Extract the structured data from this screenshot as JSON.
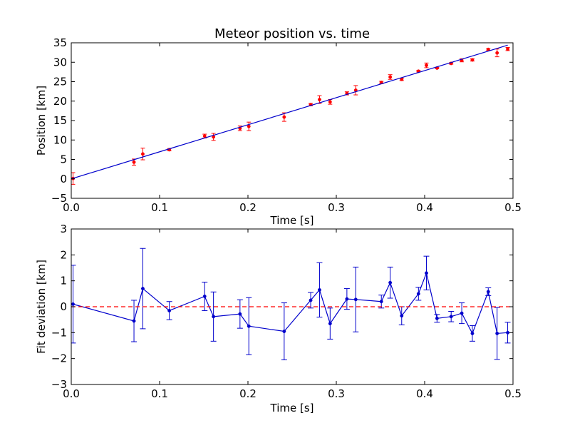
{
  "chart_data": [
    {
      "type": "scatter",
      "title": "Meteor position vs. time",
      "xlabel": "Time [s]",
      "ylabel": "Position [km]",
      "xlim": [
        0.0,
        0.5
      ],
      "ylim": [
        -5,
        35
      ],
      "xticks": [
        "0.0",
        "0.1",
        "0.2",
        "0.3",
        "0.4",
        "0.5"
      ],
      "yticks": [
        "−5",
        "0",
        "5",
        "10",
        "15",
        "20",
        "25",
        "30",
        "35"
      ],
      "grid": false,
      "series": [
        {
          "kind": "errorbar-points",
          "color": "#ff0000",
          "x": [
            0.002,
            0.071,
            0.081,
            0.111,
            0.151,
            0.161,
            0.191,
            0.201,
            0.241,
            0.271,
            0.281,
            0.293,
            0.312,
            0.322,
            0.351,
            0.361,
            0.374,
            0.393,
            0.402,
            0.414,
            0.43,
            0.442,
            0.454,
            0.472,
            0.482,
            0.494
          ],
          "y": [
            0.1,
            4.3,
            6.4,
            7.5,
            11.0,
            10.8,
            13.0,
            13.5,
            15.9,
            19.1,
            20.4,
            19.8,
            22.0,
            22.8,
            24.8,
            26.2,
            25.6,
            27.7,
            29.2,
            28.5,
            29.7,
            30.5,
            30.6,
            33.3,
            32.4,
            33.4
          ],
          "err": [
            1.5,
            0.8,
            1.5,
            0.3,
            0.5,
            0.9,
            0.6,
            1.1,
            1.1,
            0.3,
            1.0,
            0.6,
            0.4,
            1.2,
            0.3,
            0.6,
            0.3,
            0.2,
            0.6,
            0.2,
            0.2,
            0.4,
            0.3,
            0.2,
            1.0,
            0.4
          ]
        },
        {
          "kind": "fit-line",
          "color": "#0000cc",
          "x": [
            0.0,
            0.494
          ],
          "y": [
            0.0,
            34.4
          ]
        }
      ]
    },
    {
      "type": "line",
      "xlabel": "Time [s]",
      "ylabel": "Fit deviation [km]",
      "xlim": [
        0.0,
        0.5
      ],
      "ylim": [
        -3,
        3
      ],
      "xticks": [
        "0.0",
        "0.1",
        "0.2",
        "0.3",
        "0.4",
        "0.5"
      ],
      "yticks": [
        "−3",
        "−2",
        "−1",
        "0",
        "1",
        "2",
        "3"
      ],
      "grid": false,
      "series": [
        {
          "kind": "errorbar-line",
          "color": "#0000cc",
          "x": [
            0.002,
            0.071,
            0.081,
            0.111,
            0.151,
            0.161,
            0.191,
            0.201,
            0.241,
            0.271,
            0.281,
            0.293,
            0.312,
            0.322,
            0.351,
            0.361,
            0.374,
            0.393,
            0.402,
            0.414,
            0.43,
            0.442,
            0.454,
            0.472,
            0.482,
            0.494
          ],
          "y": [
            0.1,
            -0.55,
            0.7,
            -0.15,
            0.4,
            -0.38,
            -0.28,
            -0.75,
            -0.95,
            0.25,
            0.65,
            -0.65,
            0.3,
            0.28,
            0.2,
            0.93,
            -0.35,
            0.5,
            1.3,
            -0.45,
            -0.38,
            -0.25,
            -1.03,
            0.58,
            -1.03,
            -1.0
          ],
          "err": [
            1.5,
            0.8,
            1.55,
            0.35,
            0.55,
            0.95,
            0.55,
            1.1,
            1.1,
            0.3,
            1.05,
            0.6,
            0.4,
            1.25,
            0.25,
            0.6,
            0.35,
            0.25,
            0.65,
            0.15,
            0.2,
            0.4,
            0.3,
            0.15,
            1.0,
            0.4
          ]
        },
        {
          "kind": "reference-line",
          "color": "#ff0000",
          "dash": true,
          "y": 0
        }
      ]
    }
  ]
}
